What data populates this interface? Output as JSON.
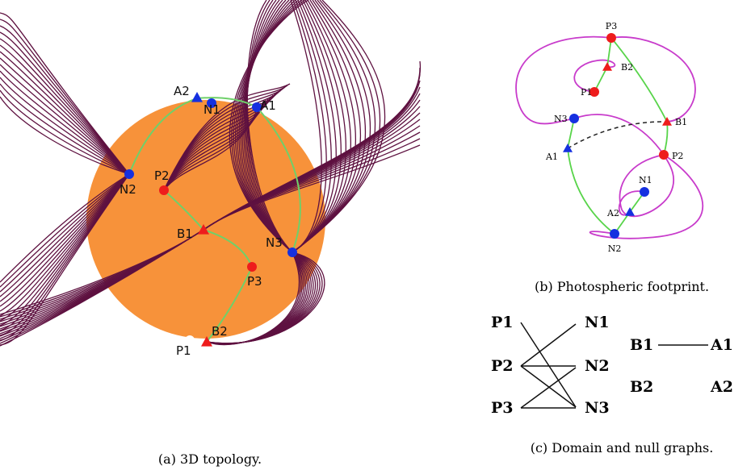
{
  "panels": [
    {
      "caption": "(a) 3D topology.",
      "labels": [
        "A2",
        "N1",
        "A1",
        "N2",
        "P2",
        "B1",
        "N3",
        "P3",
        "P1",
        "B2"
      ]
    },
    {
      "caption": "(b) Photospheric footprint.",
      "labels": [
        "P3",
        "B2",
        "P1",
        "N3",
        "B1",
        "A1",
        "P2",
        "N1",
        "A2",
        "N2"
      ]
    },
    {
      "caption": "(c) Domain and null graphs.",
      "domain_graph": {
        "left": [
          "P1",
          "P2",
          "P3"
        ],
        "right": [
          "N1",
          "N2",
          "N3"
        ]
      },
      "null_graph": {
        "left": [
          "B1",
          "B2"
        ],
        "right": [
          "A1",
          "A2"
        ]
      }
    }
  ]
}
